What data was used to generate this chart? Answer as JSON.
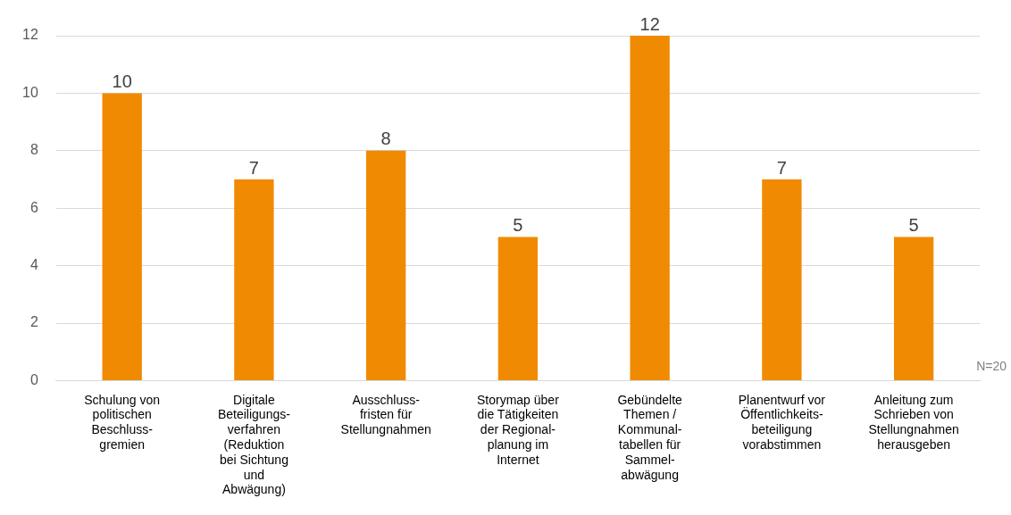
{
  "chart_data": {
    "type": "bar",
    "categories": [
      "Schulung von\npolitischen\nBeschluss-\ngremien",
      "Digitale\nBeteiligungs-\nverfahren\n(Reduktion\nbei Sichtung\nund\nAbwägung)",
      "Ausschluss-\nfristen für\nStellungnahmen",
      "Storymap über\ndie Tätigkeiten\nder Regional-\nplanung im\nInternet",
      "Gebündelte\nThemen /\nKommunal-\ntabellen für\nSammel-\nabwägung",
      "Planentwurf vor\nÖffentlichkeits-\nbeteiligung\nvorabstimmen",
      "Anleitung zum\nSchrieben von\nStellungnahmen\nherausgeben"
    ],
    "values": [
      10,
      7,
      8,
      5,
      12,
      7,
      5
    ],
    "color": "#f08a00",
    "ylim": [
      0,
      12
    ],
    "yticks": [
      0,
      2,
      4,
      6,
      8,
      10,
      12
    ],
    "grid": "y",
    "data_labels": true,
    "legend": false,
    "annotations": [
      "N=20"
    ]
  }
}
